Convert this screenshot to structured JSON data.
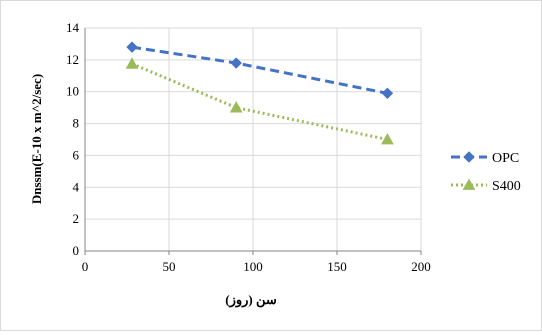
{
  "chart_data": {
    "type": "line",
    "title": "",
    "xlabel": "سن (روز)",
    "ylabel": "Dnssm(E-10 x m^2/sec)",
    "xlim": [
      0,
      200
    ],
    "ylim": [
      0,
      14
    ],
    "x_ticks": [
      "0",
      "50",
      "100",
      "150",
      "200"
    ],
    "y_ticks": [
      "0",
      "2",
      "4",
      "6",
      "8",
      "10",
      "12",
      "14"
    ],
    "grid": true,
    "legend_position": "right",
    "series": [
      {
        "name": "OPC",
        "x": [
          28,
          90,
          180
        ],
        "y": [
          12.8,
          11.8,
          9.9
        ],
        "color": "#4472c4",
        "marker": "diamond",
        "line_style": "dashed"
      },
      {
        "name": "S400",
        "x": [
          28,
          90,
          180
        ],
        "y": [
          11.75,
          9.0,
          7.0
        ],
        "color": "#9bbb59",
        "marker": "triangle",
        "line_style": "dotted"
      }
    ]
  }
}
